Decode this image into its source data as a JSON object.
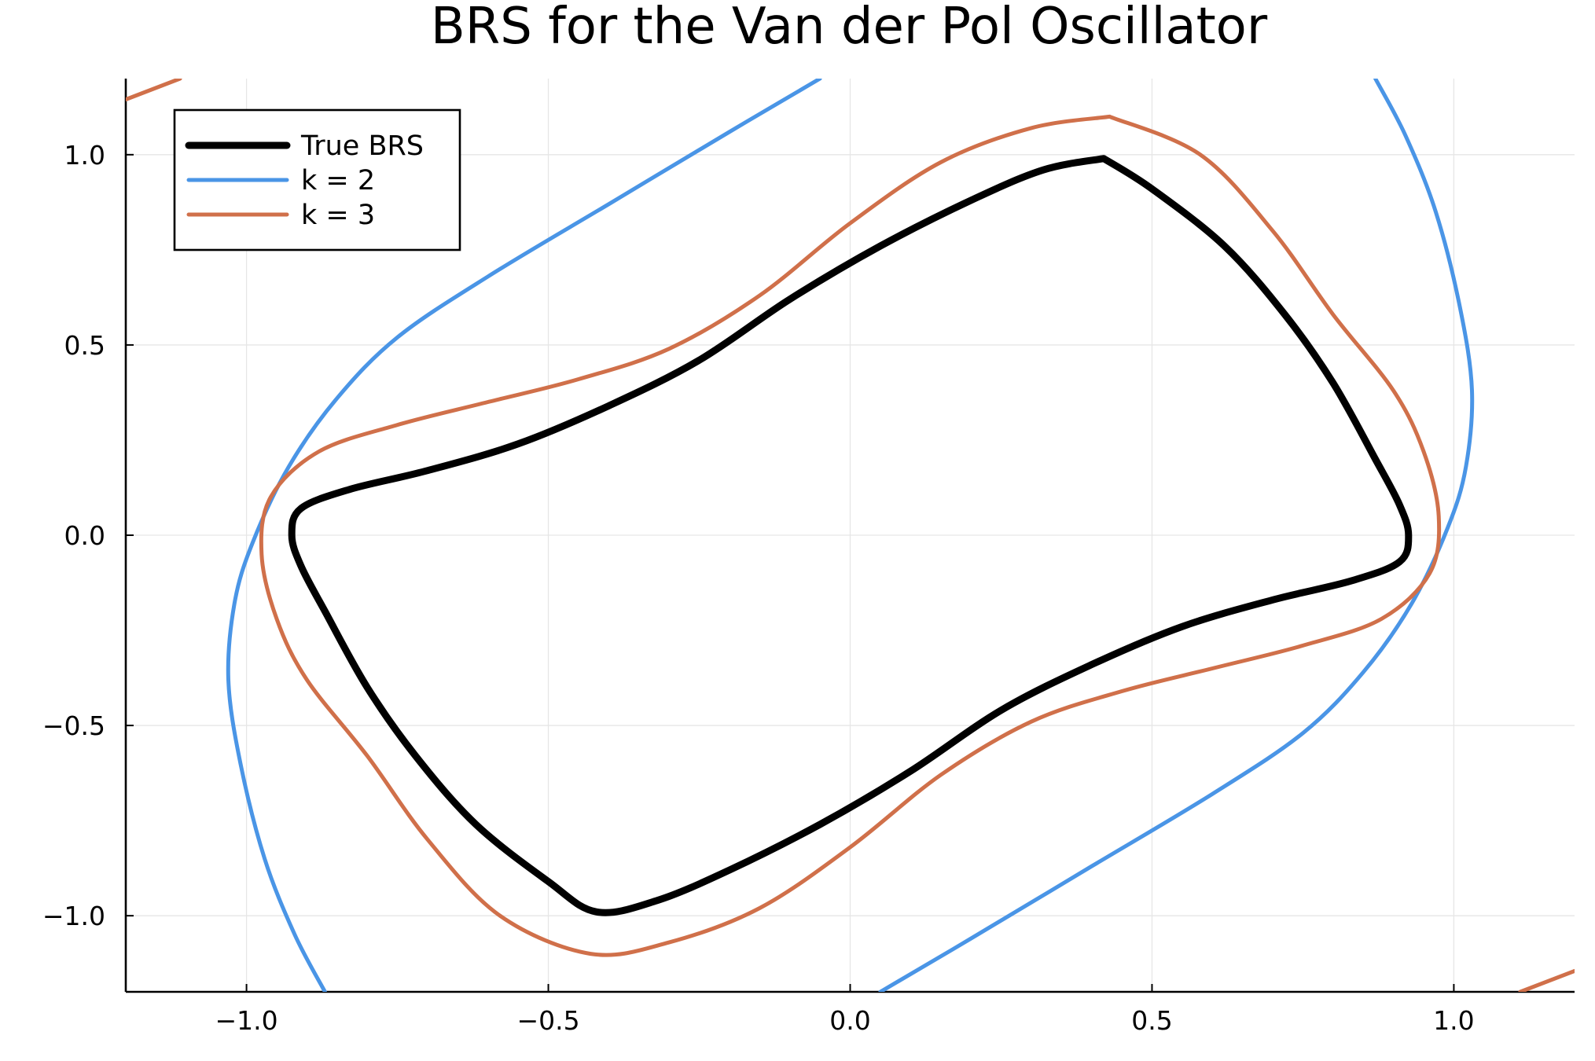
{
  "chart_data": {
    "type": "line",
    "title": "BRS for the Van der Pol Oscillator",
    "xlabel": "",
    "ylabel": "",
    "xlim": [
      -1.2,
      1.2
    ],
    "ylim": [
      -1.2,
      1.2
    ],
    "x_ticks": [
      -1.0,
      -0.5,
      0.0,
      0.5,
      1.0
    ],
    "x_tick_labels": [
      "−1.0",
      "−0.5",
      "0.0",
      "0.5",
      "1.0"
    ],
    "y_ticks": [
      -1.0,
      -0.5,
      0.0,
      0.5,
      1.0
    ],
    "y_tick_labels": [
      "−1.0",
      "−0.5",
      "0.0",
      "0.5",
      "1.0"
    ],
    "grid": true,
    "legend_position": "top-left",
    "series": [
      {
        "name": "True BRS",
        "color": "#000000",
        "segments": [
          [
            [
              0.42,
              0.99
            ],
            [
              0.32,
              0.96
            ],
            [
              0.2,
              0.88
            ],
            [
              0.05,
              0.76
            ],
            [
              -0.1,
              0.62
            ],
            [
              -0.25,
              0.46
            ],
            [
              -0.4,
              0.34
            ],
            [
              -0.55,
              0.24
            ],
            [
              -0.7,
              0.17
            ],
            [
              -0.83,
              0.12
            ],
            [
              -0.91,
              0.07
            ],
            [
              -0.925,
              0.0
            ],
            [
              -0.91,
              -0.08
            ],
            [
              -0.87,
              -0.2
            ],
            [
              -0.8,
              -0.4
            ],
            [
              -0.72,
              -0.58
            ],
            [
              -0.62,
              -0.76
            ],
            [
              -0.5,
              -0.91
            ],
            [
              -0.42,
              -0.99
            ],
            [
              -0.32,
              -0.96
            ],
            [
              -0.2,
              -0.88
            ],
            [
              -0.05,
              -0.76
            ],
            [
              0.1,
              -0.62
            ],
            [
              0.25,
              -0.46
            ],
            [
              0.4,
              -0.34
            ],
            [
              0.55,
              -0.24
            ],
            [
              0.7,
              -0.17
            ],
            [
              0.83,
              -0.12
            ],
            [
              0.91,
              -0.07
            ],
            [
              0.925,
              0.0
            ],
            [
              0.91,
              0.08
            ],
            [
              0.87,
              0.2
            ],
            [
              0.8,
              0.4
            ],
            [
              0.72,
              0.58
            ],
            [
              0.62,
              0.76
            ],
            [
              0.5,
              0.91
            ],
            [
              0.42,
              0.99
            ]
          ]
        ]
      },
      {
        "name": "k = 2",
        "color": "#4a95e6",
        "segments": [
          [
            [
              -0.05,
              1.2
            ],
            [
              -0.2,
              1.06
            ],
            [
              -0.4,
              0.87
            ],
            [
              -0.6,
              0.68
            ],
            [
              -0.75,
              0.52
            ],
            [
              -0.85,
              0.36
            ],
            [
              -0.93,
              0.18
            ],
            [
              -0.99,
              -0.02
            ],
            [
              -1.02,
              -0.18
            ],
            [
              -1.03,
              -0.38
            ],
            [
              -1.01,
              -0.6
            ],
            [
              -0.97,
              -0.85
            ],
            [
              -0.92,
              -1.05
            ],
            [
              -0.87,
              -1.2
            ]
          ],
          [
            [
              0.05,
              -1.2
            ],
            [
              0.2,
              -1.06
            ],
            [
              0.4,
              -0.87
            ],
            [
              0.6,
              -0.68
            ],
            [
              0.75,
              -0.52
            ],
            [
              0.85,
              -0.36
            ],
            [
              0.93,
              -0.18
            ],
            [
              0.99,
              0.02
            ],
            [
              1.02,
              0.18
            ],
            [
              1.03,
              0.38
            ],
            [
              1.01,
              0.6
            ],
            [
              0.97,
              0.85
            ],
            [
              0.92,
              1.05
            ],
            [
              0.87,
              1.2
            ]
          ]
        ]
      },
      {
        "name": "k = 3",
        "color": "#d0704a",
        "segments": [
          [
            [
              0.43,
              1.1
            ],
            [
              0.3,
              1.07
            ],
            [
              0.15,
              0.98
            ],
            [
              0.0,
              0.82
            ],
            [
              -0.15,
              0.63
            ],
            [
              -0.3,
              0.49
            ],
            [
              -0.45,
              0.41
            ],
            [
              -0.6,
              0.35
            ],
            [
              -0.75,
              0.29
            ],
            [
              -0.88,
              0.22
            ],
            [
              -0.96,
              0.1
            ],
            [
              -0.975,
              -0.05
            ],
            [
              -0.95,
              -0.22
            ],
            [
              -0.9,
              -0.38
            ],
            [
              -0.8,
              -0.58
            ],
            [
              -0.7,
              -0.8
            ],
            [
              -0.58,
              -1.0
            ],
            [
              -0.43,
              -1.1
            ],
            [
              -0.3,
              -1.07
            ],
            [
              -0.15,
              -0.98
            ],
            [
              0.0,
              -0.82
            ],
            [
              0.15,
              -0.63
            ],
            [
              0.3,
              -0.49
            ],
            [
              0.45,
              -0.41
            ],
            [
              0.6,
              -0.35
            ],
            [
              0.75,
              -0.29
            ],
            [
              0.88,
              -0.22
            ],
            [
              0.96,
              -0.1
            ],
            [
              0.975,
              0.05
            ],
            [
              0.95,
              0.22
            ],
            [
              0.9,
              0.38
            ],
            [
              0.8,
              0.58
            ],
            [
              0.7,
              0.8
            ],
            [
              0.58,
              1.0
            ],
            [
              0.43,
              1.1
            ]
          ],
          [
            [
              -1.2,
              1.145
            ],
            [
              -1.11,
              1.2
            ]
          ],
          [
            [
              1.11,
              -1.2
            ],
            [
              1.2,
              -1.145
            ]
          ]
        ]
      }
    ]
  }
}
